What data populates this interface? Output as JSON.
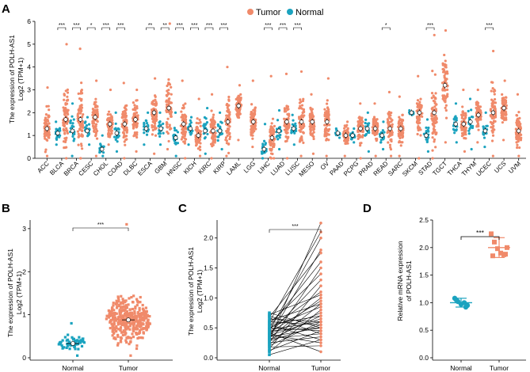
{
  "colors": {
    "tumor": "#F08A6A",
    "normal": "#1BA3BF",
    "axis": "#000000",
    "median_dot": "#ffffff"
  },
  "chart_data": [
    {
      "panel": "A",
      "type": "scatter",
      "title": "",
      "ylabel_line1": "The expression of POLH-AS1",
      "ylabel_line2": "Log2 (TPM+1)",
      "ylim": [
        0,
        6
      ],
      "yticks": [
        "0",
        "1",
        "2",
        "3",
        "4",
        "5",
        "6"
      ],
      "legend": {
        "tumor": "Tumor",
        "normal": "Normal"
      },
      "categories": [
        "ACC",
        "BLCA",
        "BRCA",
        "CESC",
        "CHOL",
        "COAD",
        "DLBC",
        "ESCA",
        "GBM",
        "HNSC",
        "KICH",
        "KIRC",
        "KIRP",
        "LAML",
        "LGG",
        "LIHC",
        "LUAD",
        "LUSC",
        "MESO",
        "OV",
        "PAAD",
        "PCPG",
        "PRAD",
        "READ",
        "SARC",
        "SKCM",
        "STAD",
        "TGCT",
        "THCA",
        "THYM",
        "UCEC",
        "UCS",
        "UVM"
      ],
      "series": [
        {
          "name": "Tumor",
          "medians": [
            1.3,
            1.7,
            1.7,
            1.8,
            1.5,
            1.5,
            1.7,
            2.0,
            2.2,
            1.5,
            1.0,
            1.2,
            1.6,
            2.3,
            1.6,
            0.9,
            1.6,
            1.6,
            1.6,
            1.6,
            1.0,
            1.3,
            1.3,
            1.3,
            1.3,
            2.0,
            2.0,
            3.2,
            1.5,
            1.9,
            2.0,
            2.2,
            1.2
          ],
          "max": [
            3.1,
            5.0,
            4.8,
            3.4,
            3.0,
            3.3,
            3.0,
            3.5,
            5.9,
            3.4,
            2.6,
            2.8,
            4.0,
            3.2,
            3.4,
            3.6,
            3.7,
            3.8,
            2.8,
            3.5,
            1.6,
            2.4,
            2.4,
            2.9,
            2.7,
            3.6,
            5.4,
            5.6,
            3.0,
            3.0,
            4.7,
            3.4,
            2.8
          ],
          "min": [
            0.1,
            0.0,
            0.0,
            0.1,
            0.6,
            0.0,
            0.3,
            0.2,
            0.4,
            0.0,
            0.1,
            0.0,
            0.1,
            0.8,
            0.5,
            0.0,
            0.0,
            0.1,
            0.2,
            0.1,
            0.1,
            0.0,
            0.1,
            0.1,
            0.1,
            0.0,
            0.0,
            0.7,
            0.3,
            0.7,
            0.1,
            0.8,
            0.1
          ]
        },
        {
          "name": "Normal",
          "medians": [
            null,
            1.1,
            1.2,
            1.2,
            0.4,
            1.1,
            null,
            1.3,
            1.3,
            0.9,
            1.3,
            1.2,
            1.2,
            null,
            null,
            0.4,
            1.2,
            1.3,
            null,
            null,
            1.1,
            1.0,
            1.3,
            1.0,
            null,
            2.0,
            1.0,
            null,
            1.5,
            1.6,
            1.2,
            null,
            null
          ],
          "max": [
            null,
            1.6,
            2.4,
            1.8,
            1.0,
            2.0,
            null,
            2.0,
            2.0,
            2.0,
            1.8,
            2.2,
            2.0,
            null,
            null,
            1.5,
            2.1,
            1.9,
            null,
            null,
            1.3,
            1.3,
            2.0,
            1.6,
            null,
            2.1,
            1.7,
            null,
            2.4,
            2.6,
            2.0,
            null,
            null
          ],
          "min": [
            null,
            0.6,
            0.1,
            0.6,
            0.1,
            0.3,
            null,
            0.6,
            0.6,
            0.1,
            0.6,
            0.2,
            0.4,
            null,
            null,
            0.0,
            0.4,
            0.6,
            null,
            null,
            0.9,
            0.7,
            0.3,
            0.4,
            null,
            1.9,
            0.3,
            null,
            0.7,
            0.4,
            0.5,
            null,
            null
          ]
        }
      ],
      "significance": [
        null,
        "***",
        "***",
        "*",
        "***",
        "***",
        null,
        "**",
        "**",
        "***",
        "***",
        "***",
        "***",
        null,
        null,
        "***",
        "***",
        "***",
        null,
        null,
        null,
        null,
        null,
        "*",
        null,
        null,
        "***",
        null,
        null,
        null,
        "***",
        null,
        null
      ]
    },
    {
      "panel": "B",
      "type": "scatter",
      "ylabel_line1": "The expression of POLH-AS1",
      "ylabel_line2": "Log2 (TPM+1)",
      "ylim": [
        0,
        3.2
      ],
      "yticks": [
        "0",
        "1",
        "2",
        "3"
      ],
      "categories": [
        "Normal",
        "Tumor"
      ],
      "medians": [
        0.33,
        0.88
      ],
      "ranges": [
        [
          0.05,
          0.8
        ],
        [
          0.05,
          3.1
        ]
      ],
      "significance": "***"
    },
    {
      "panel": "C",
      "type": "line",
      "ylabel_line1": "The expression of POLH-AS1",
      "ylabel_line2": "Log2 (TPM+1)",
      "ylim": [
        0,
        2.3
      ],
      "yticks": [
        "0.0",
        "0.5",
        "1.0",
        "1.5",
        "2.0"
      ],
      "categories": [
        "Normal",
        "Tumor"
      ],
      "paired_normal": [
        0.05,
        0.1,
        0.12,
        0.15,
        0.18,
        0.2,
        0.22,
        0.25,
        0.25,
        0.28,
        0.3,
        0.3,
        0.32,
        0.33,
        0.35,
        0.35,
        0.37,
        0.38,
        0.4,
        0.4,
        0.42,
        0.42,
        0.45,
        0.45,
        0.47,
        0.48,
        0.5,
        0.5,
        0.52,
        0.55,
        0.55,
        0.57,
        0.6,
        0.6,
        0.62,
        0.65,
        0.68,
        0.7,
        0.72,
        0.75
      ],
      "paired_tumor": [
        0.3,
        0.8,
        0.45,
        1.2,
        0.2,
        0.6,
        0.9,
        0.35,
        1.5,
        0.55,
        0.7,
        2.25,
        0.4,
        1.0,
        0.5,
        1.8,
        0.65,
        0.25,
        1.3,
        0.75,
        0.1,
        0.95,
        0.5,
        2.0,
        0.6,
        1.1,
        0.45,
        0.85,
        1.6,
        0.3,
        0.7,
        1.4,
        0.55,
        2.1,
        0.9,
        0.6,
        1.75,
        0.4,
        1.05,
        0.5
      ],
      "significance": "***"
    },
    {
      "panel": "D",
      "type": "scatter",
      "ylabel_line1": "Relative mRNA expression",
      "ylabel_line2": "of POLH-AS1",
      "ylim": [
        0,
        2.5
      ],
      "yticks": [
        "0.0",
        "0.5",
        "1.0",
        "1.5",
        "2.0",
        "2.5"
      ],
      "categories": [
        "Normal",
        "Tumor"
      ],
      "normal_values": [
        1.08,
        1.02,
        0.97,
        1.0,
        0.95,
        1.05,
        0.92
      ],
      "tumor_values": [
        2.25,
        2.1,
        1.98,
        1.9,
        1.87,
        2.0,
        1.85,
        1.88
      ],
      "means": [
        1.0,
        2.0
      ],
      "sd": [
        0.08,
        0.18
      ],
      "significance": "***"
    }
  ]
}
